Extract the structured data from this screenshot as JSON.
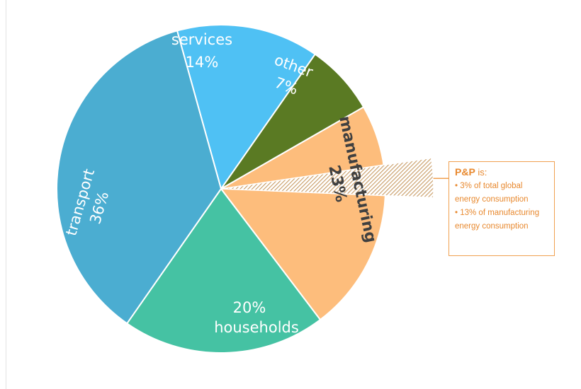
{
  "chart_data": {
    "type": "pie",
    "slices": [
      {
        "label": "services",
        "value": 14,
        "display": "14%",
        "color": "#4fc1f4"
      },
      {
        "label": "other",
        "value": 7,
        "display": "7%",
        "color": "#5a7a23"
      },
      {
        "label": "manufacturing",
        "value": 23,
        "display": "23%",
        "color": "#fdbd7c"
      },
      {
        "label": "households",
        "value": 20,
        "display": "20%",
        "color": "#45c2a3"
      },
      {
        "label": "transport",
        "value": 36,
        "display": "36%",
        "color": "#4badd1"
      }
    ],
    "highlight": {
      "label": "P&P",
      "share_of_total_percent": 3,
      "share_of_manufacturing_percent": 13,
      "pattern_color": "#c79a63"
    }
  },
  "callout": {
    "title_bold": "P&P",
    "title_rest": " is:",
    "items": [
      "• 3% of total global energy consumption",
      "• 13% of manufacturing energy consumption"
    ],
    "color": "#e8892f"
  }
}
